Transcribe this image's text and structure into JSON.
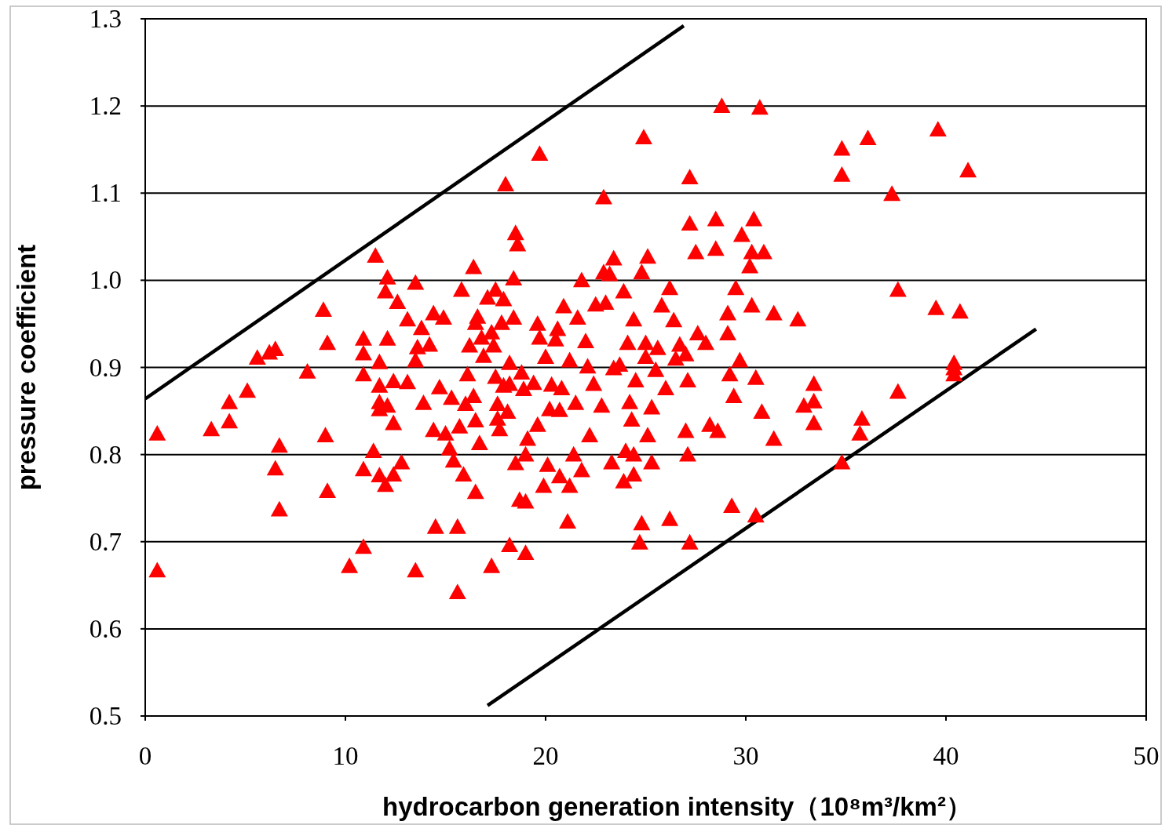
{
  "chart_data": {
    "type": "scatter",
    "xlabel": "hydrocarbon generation intensity（10⁸m³/km²）",
    "ylabel": "pressure coefficient",
    "xlim": [
      0,
      50
    ],
    "xticks": [
      0,
      10,
      20,
      30,
      40,
      50
    ],
    "ylim": [
      0.5,
      1.3
    ],
    "yticks": [
      0.5,
      0.6,
      0.7,
      0.8,
      0.9,
      {
        "value": 1.0,
        "label": "1.0"
      },
      1.1,
      1.2,
      1.3
    ],
    "grid": "y",
    "series": [
      {
        "marker": "triangle",
        "color": "#ff0000",
        "x": [
          0.6,
          0.6,
          3.3,
          4.2,
          4.2,
          5.1,
          5.6,
          6.2,
          6.5,
          6.7,
          6.5,
          6.7,
          8.1,
          9.0,
          8.9,
          9.1,
          9.1,
          10.2,
          10.9,
          10.9,
          10.9,
          10.9,
          10.9,
          11.5,
          11.4,
          11.7,
          11.7,
          11.7,
          11.7,
          11.7,
          12.1,
          12.0,
          12.1,
          12.1,
          12.0,
          12.4,
          12.4,
          12.4,
          12.6,
          12.8,
          13.1,
          13.1,
          13.5,
          13.5,
          13.6,
          13.5,
          13.8,
          13.9,
          14.2,
          14.4,
          14.4,
          14.5,
          14.7,
          14.9,
          15.0,
          15.2,
          15.3,
          15.4,
          15.6,
          15.6,
          15.7,
          15.8,
          15.9,
          16.0,
          16.1,
          16.2,
          16.4,
          16.4,
          16.5,
          16.5,
          16.5,
          16.6,
          16.7,
          16.8,
          16.9,
          17.1,
          17.3,
          17.3,
          17.4,
          17.5,
          17.5,
          17.6,
          17.6,
          17.7,
          17.8,
          17.9,
          17.9,
          18.0,
          18.1,
          18.2,
          18.2,
          18.2,
          18.4,
          18.4,
          18.5,
          18.5,
          18.6,
          18.7,
          18.8,
          18.9,
          19.0,
          19.0,
          19.0,
          19.1,
          19.4,
          19.6,
          19.7,
          19.6,
          19.7,
          19.9,
          20.0,
          20.1,
          20.2,
          20.3,
          20.5,
          20.6,
          20.7,
          20.7,
          20.8,
          20.9,
          21.1,
          21.2,
          21.2,
          21.4,
          21.5,
          21.6,
          21.8,
          21.8,
          22.0,
          22.1,
          22.2,
          22.4,
          22.5,
          22.8,
          22.9,
          22.9,
          23.0,
          23.2,
          23.3,
          23.4,
          23.4,
          23.7,
          23.9,
          23.9,
          24.0,
          24.1,
          24.2,
          24.3,
          24.4,
          24.4,
          24.4,
          24.5,
          24.7,
          24.8,
          24.8,
          24.9,
          25.0,
          25.0,
          25.1,
          25.1,
          25.3,
          25.3,
          25.5,
          25.6,
          25.8,
          26.0,
          26.2,
          26.2,
          26.4,
          26.5,
          26.7,
          27.0,
          27.1,
          27.1,
          27.2,
          27.2,
          27.2,
          27.0,
          27.5,
          27.6,
          28.0,
          28.2,
          28.5,
          28.5,
          28.6,
          28.8,
          29.1,
          29.1,
          29.2,
          29.3,
          29.4,
          29.5,
          29.7,
          29.8,
          30.3,
          30.2,
          30.3,
          30.4,
          30.5,
          30.5,
          30.7,
          30.8,
          30.9,
          31.4,
          31.4,
          32.6,
          32.9,
          33.4,
          33.4,
          33.4,
          34.8,
          34.8,
          34.8,
          35.8,
          35.7,
          36.1,
          37.3,
          37.6,
          37.6,
          39.6,
          39.5,
          40.4,
          40.4,
          40.7,
          41.1,
          40.4
        ],
        "values": [
          0.824,
          0.667,
          0.829,
          0.86,
          0.838,
          0.873,
          0.911,
          0.917,
          0.921,
          0.81,
          0.784,
          0.737,
          0.895,
          0.822,
          0.966,
          0.928,
          0.758,
          0.672,
          0.933,
          0.916,
          0.892,
          0.783,
          0.694,
          1.028,
          0.804,
          0.906,
          0.879,
          0.86,
          0.852,
          0.776,
          1.003,
          0.987,
          0.933,
          0.856,
          0.765,
          0.884,
          0.836,
          0.777,
          0.975,
          0.791,
          0.883,
          0.955,
          0.997,
          0.667,
          0.923,
          0.908,
          0.945,
          0.859,
          0.926,
          0.962,
          0.828,
          0.717,
          0.877,
          0.957,
          0.824,
          0.807,
          0.865,
          0.793,
          0.642,
          0.717,
          0.832,
          0.989,
          0.777,
          0.858,
          0.892,
          0.925,
          1.015,
          0.867,
          0.839,
          0.757,
          0.951,
          0.958,
          0.813,
          0.934,
          0.913,
          0.98,
          0.672,
          0.94,
          0.925,
          0.989,
          0.889,
          0.858,
          0.841,
          0.829,
          0.951,
          0.879,
          0.978,
          1.11,
          0.849,
          0.905,
          0.696,
          0.881,
          1.002,
          0.957,
          1.054,
          0.79,
          1.041,
          0.748,
          0.894,
          0.875,
          0.746,
          0.687,
          0.8,
          0.818,
          0.882,
          0.834,
          1.145,
          0.95,
          0.934,
          0.764,
          0.912,
          0.788,
          0.852,
          0.88,
          0.932,
          0.944,
          0.775,
          0.851,
          0.876,
          0.97,
          0.723,
          0.908,
          0.764,
          0.8,
          0.859,
          0.957,
          0.782,
          1.0,
          0.93,
          0.901,
          0.822,
          0.881,
          0.972,
          0.856,
          1.095,
          1.009,
          0.974,
          1.007,
          0.791,
          0.899,
          1.025,
          0.903,
          0.987,
          0.769,
          0.804,
          0.928,
          0.86,
          0.84,
          0.777,
          0.955,
          0.8,
          0.885,
          0.699,
          0.721,
          1.009,
          1.164,
          0.928,
          0.912,
          1.027,
          0.822,
          0.854,
          0.791,
          0.897,
          0.922,
          0.971,
          0.876,
          0.726,
          0.991,
          0.954,
          0.91,
          0.926,
          0.915,
          0.8,
          0.885,
          1.118,
          0.699,
          1.065,
          0.827,
          1.032,
          0.939,
          0.928,
          0.834,
          1.07,
          1.036,
          0.827,
          1.2,
          0.939,
          0.962,
          0.892,
          0.741,
          0.867,
          0.991,
          0.908,
          1.052,
          0.971,
          1.016,
          1.032,
          1.07,
          0.73,
          0.888,
          1.198,
          0.849,
          1.032,
          0.962,
          0.818,
          0.955,
          0.856,
          0.881,
          0.861,
          0.836,
          0.791,
          1.151,
          1.121,
          0.841,
          0.824,
          1.163,
          1.099,
          0.989,
          0.872,
          1.173,
          0.968,
          0.899,
          0.892,
          0.964,
          1.126,
          0.905
        ]
      },
      {
        "type": "line",
        "color": "#000000",
        "x": [
          0,
          26.9
        ],
        "values": [
          0.864,
          1.292
        ]
      },
      {
        "type": "line",
        "color": "#000000",
        "x": [
          17.1,
          44.5
        ],
        "values": [
          0.512,
          0.944
        ]
      }
    ]
  }
}
